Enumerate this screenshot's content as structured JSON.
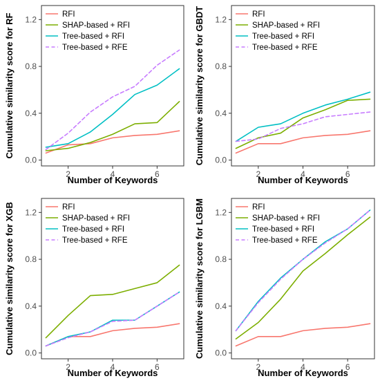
{
  "chart_data": [
    {
      "type": "line",
      "xlabel": "Number of Keywords",
      "ylabel": "Cumulative similarity score for RF",
      "xlim": [
        0.8,
        7.2
      ],
      "ylim": [
        -0.05,
        1.32
      ],
      "x_ticks": [
        2,
        4,
        6
      ],
      "y_ticks": [
        0.0,
        0.4,
        0.8,
        1.2
      ],
      "x_tick_labels": [
        "2",
        "4",
        "6"
      ],
      "y_tick_labels": [
        "0.0",
        "0.4",
        "0.8",
        "1.2"
      ],
      "grid": false,
      "legend_position": "top-left",
      "x": [
        1,
        2,
        3,
        4,
        5,
        6,
        7
      ],
      "series": [
        {
          "name": "RFI",
          "values": [
            0.06,
            0.13,
            0.14,
            0.19,
            0.21,
            0.22,
            0.25
          ]
        },
        {
          "name": "SHAP-based + RFI",
          "values": [
            0.08,
            0.1,
            0.15,
            0.22,
            0.31,
            0.32,
            0.5
          ]
        },
        {
          "name": "Tree-based + RFI",
          "values": [
            0.11,
            0.14,
            0.24,
            0.39,
            0.56,
            0.64,
            0.78
          ]
        },
        {
          "name": "Tree-based + RFE",
          "values": [
            0.09,
            0.23,
            0.41,
            0.54,
            0.63,
            0.81,
            0.94
          ]
        }
      ]
    },
    {
      "type": "line",
      "xlabel": "Number of Keywords",
      "ylabel": "Cumulative similarity score for GBDT",
      "xlim": [
        0.8,
        7.2
      ],
      "ylim": [
        -0.05,
        1.32
      ],
      "x_ticks": [
        2,
        4,
        6
      ],
      "y_ticks": [
        0.0,
        0.4,
        0.8,
        1.2
      ],
      "x_tick_labels": [
        "2",
        "4",
        "6"
      ],
      "y_tick_labels": [
        "0.0",
        "0.4",
        "0.8",
        "1.2"
      ],
      "grid": false,
      "legend_position": "top-left",
      "x": [
        1,
        2,
        3,
        4,
        5,
        6,
        7
      ],
      "series": [
        {
          "name": "RFI",
          "values": [
            0.06,
            0.14,
            0.14,
            0.19,
            0.21,
            0.22,
            0.25
          ]
        },
        {
          "name": "SHAP-based + RFI",
          "values": [
            0.1,
            0.19,
            0.23,
            0.36,
            0.43,
            0.51,
            0.52
          ]
        },
        {
          "name": "Tree-based + RFI",
          "values": [
            0.16,
            0.28,
            0.31,
            0.4,
            0.47,
            0.52,
            0.58
          ]
        },
        {
          "name": "Tree-based + RFE",
          "values": [
            0.16,
            0.18,
            0.27,
            0.31,
            0.37,
            0.39,
            0.41
          ]
        }
      ]
    },
    {
      "type": "line",
      "xlabel": "Number of Keywords",
      "ylabel": "Cumulative similarity score for XGB",
      "xlim": [
        0.8,
        7.2
      ],
      "ylim": [
        -0.05,
        1.32
      ],
      "x_ticks": [
        2,
        4,
        6
      ],
      "y_ticks": [
        0.0,
        0.4,
        0.8,
        1.2
      ],
      "x_tick_labels": [
        "2",
        "4",
        "6"
      ],
      "y_tick_labels": [
        "0.0",
        "0.4",
        "0.8",
        "1.2"
      ],
      "grid": false,
      "legend_position": "top-left",
      "x": [
        1,
        2,
        3,
        4,
        5,
        6,
        7
      ],
      "series": [
        {
          "name": "RFI",
          "values": [
            0.06,
            0.14,
            0.14,
            0.19,
            0.21,
            0.22,
            0.25
          ]
        },
        {
          "name": "SHAP-based + RFI",
          "values": [
            0.13,
            0.32,
            0.49,
            0.5,
            0.55,
            0.6,
            0.75
          ]
        },
        {
          "name": "Tree-based + RFI",
          "values": [
            0.06,
            0.14,
            0.18,
            0.28,
            0.28,
            0.4,
            0.52
          ]
        },
        {
          "name": "Tree-based + RFE",
          "values": [
            0.06,
            0.13,
            0.18,
            0.27,
            0.28,
            0.4,
            0.52
          ]
        }
      ]
    },
    {
      "type": "line",
      "xlabel": "Number of Keywords",
      "ylabel": "Cumulative similarity score for LGBM",
      "xlim": [
        0.8,
        7.2
      ],
      "ylim": [
        -0.05,
        1.32
      ],
      "x_ticks": [
        2,
        4,
        6
      ],
      "y_ticks": [
        0.0,
        0.4,
        0.8,
        1.2
      ],
      "x_tick_labels": [
        "2",
        "4",
        "6"
      ],
      "y_tick_labels": [
        "0.0",
        "0.4",
        "0.8",
        "1.2"
      ],
      "grid": false,
      "legend_position": "top-left",
      "x": [
        1,
        2,
        3,
        4,
        5,
        6,
        7
      ],
      "series": [
        {
          "name": "RFI",
          "values": [
            0.06,
            0.14,
            0.14,
            0.19,
            0.21,
            0.22,
            0.25
          ]
        },
        {
          "name": "SHAP-based + RFI",
          "values": [
            0.12,
            0.26,
            0.46,
            0.7,
            0.85,
            1.01,
            1.16
          ]
        },
        {
          "name": "Tree-based + RFI",
          "values": [
            0.19,
            0.44,
            0.64,
            0.8,
            0.95,
            1.06,
            1.22
          ]
        },
        {
          "name": "Tree-based + RFE",
          "values": [
            0.19,
            0.43,
            0.63,
            0.8,
            0.94,
            1.06,
            1.22
          ]
        }
      ]
    }
  ],
  "series_styles": [
    {
      "color": "#f8766d",
      "dash": "solid"
    },
    {
      "color": "#7cae00",
      "dash": "solid"
    },
    {
      "color": "#00bfc4",
      "dash": "solid"
    },
    {
      "color": "#c77cff",
      "dash": "dashed"
    }
  ]
}
